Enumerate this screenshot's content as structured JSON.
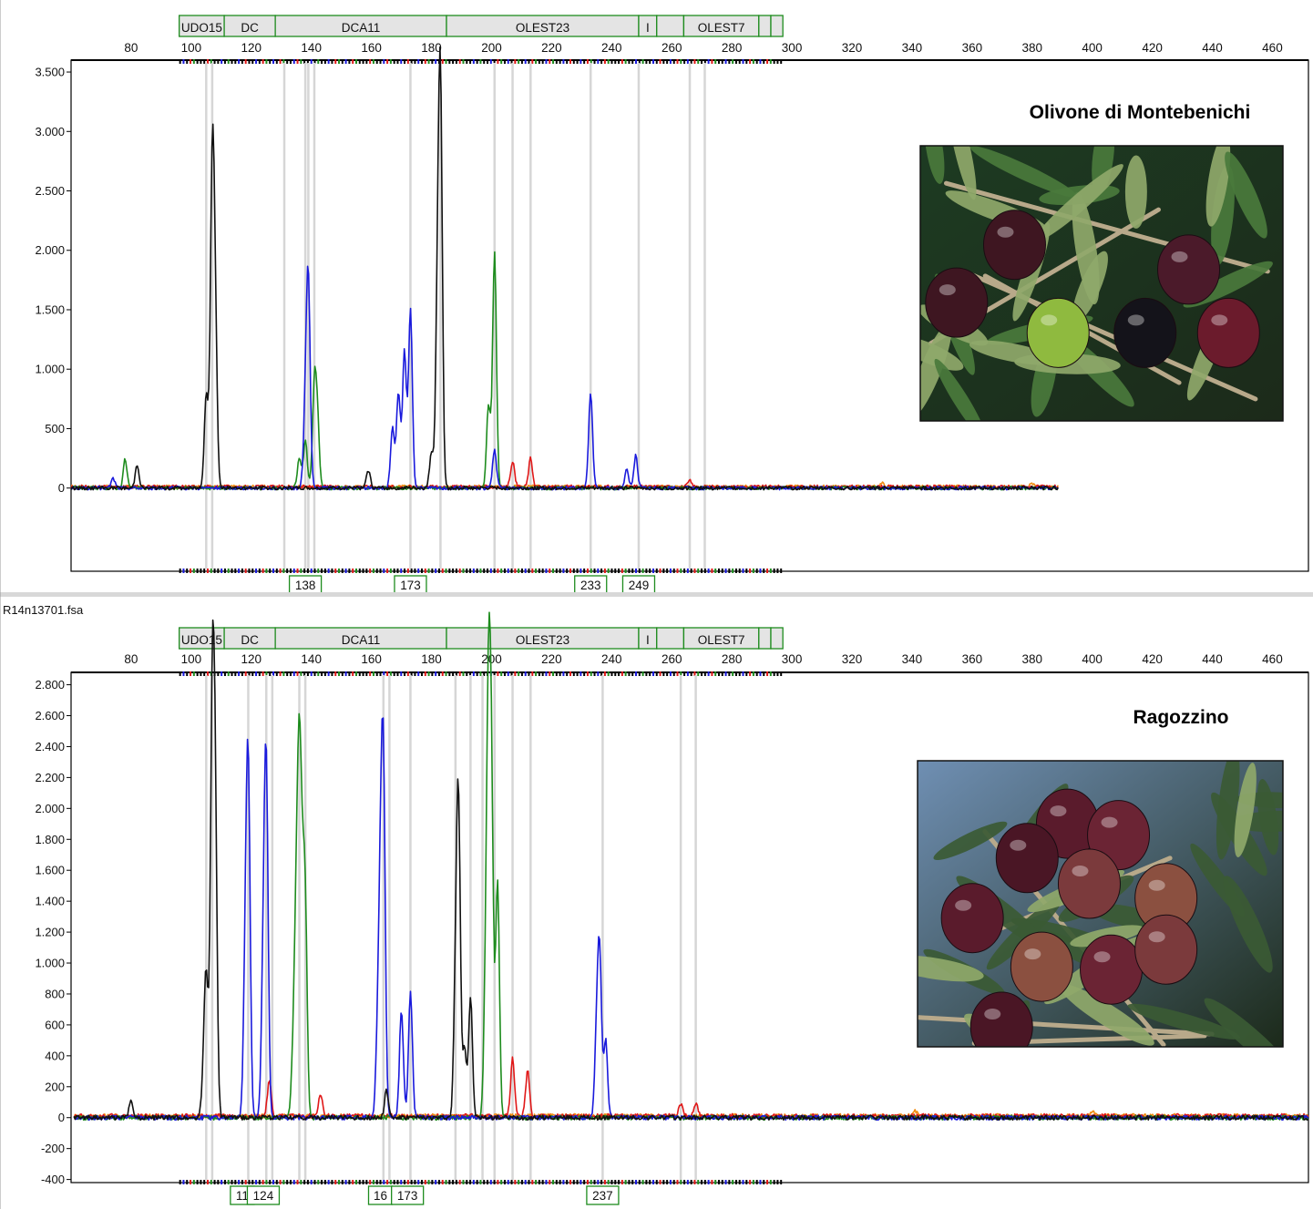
{
  "chart_data": [
    {
      "type": "line",
      "title": "Olivone di Montebenichi",
      "filename": "",
      "ylim": [
        -700,
        3600
      ],
      "yticks": [
        0,
        500,
        1000,
        1500,
        2000,
        2500,
        3000,
        3500
      ],
      "ytick_labels": [
        "0",
        "500",
        "1.000",
        "1.500",
        "2.000",
        "2.500",
        "3.000",
        "3.500"
      ],
      "xlim": [
        60,
        472
      ],
      "xticks": [
        80,
        100,
        120,
        140,
        160,
        180,
        200,
        220,
        240,
        260,
        280,
        300,
        320,
        340,
        360,
        380,
        400,
        420,
        440,
        460
      ],
      "markers": [
        {
          "label": "UDO15",
          "start": 96,
          "end": 111
        },
        {
          "label": "DC",
          "start": 111,
          "end": 128
        },
        {
          "label": "DCA11",
          "start": 128,
          "end": 185
        },
        {
          "label": "OLEST23",
          "start": 185,
          "end": 249
        },
        {
          "label": "I",
          "start": 249,
          "end": 255
        },
        {
          "label": "",
          "start": 255,
          "end": 264
        },
        {
          "label": "OLEST7",
          "start": 264,
          "end": 289
        },
        {
          "label": "",
          "start": 289,
          "end": 293
        },
        {
          "label": "",
          "start": 293,
          "end": 297
        }
      ],
      "bins": [
        105,
        107,
        131,
        138,
        139,
        141,
        173,
        183,
        201,
        207,
        213,
        233,
        249,
        266,
        271
      ],
      "alleles": [
        "138",
        "173",
        "233",
        "249"
      ],
      "allele_positions": [
        138,
        173,
        233,
        249
      ],
      "series": [
        {
          "dye": "blue",
          "color": "#1a1adc",
          "peaks": [
            [
              74,
              80
            ],
            [
              139,
              1680
            ],
            [
              138,
              600
            ],
            [
              171,
              1150
            ],
            [
              173,
              1500
            ],
            [
              169,
              800
            ],
            [
              167,
              500
            ],
            [
              201,
              330
            ],
            [
              233,
              800
            ],
            [
              248,
              270
            ],
            [
              245,
              150
            ]
          ]
        },
        {
          "dye": "green",
          "color": "#1e8c1e",
          "peaks": [
            [
              78,
              240
            ],
            [
              141,
              800
            ],
            [
              142,
              550
            ],
            [
              138,
              400
            ],
            [
              136,
              250
            ],
            [
              201,
              1980
            ],
            [
              199,
              700
            ]
          ]
        },
        {
          "dye": "black",
          "color": "#111111",
          "peaks": [
            [
              82,
              200
            ],
            [
              105,
              800
            ],
            [
              107,
              2600
            ],
            [
              108,
              1300
            ],
            [
              159,
              150
            ],
            [
              183,
              3230
            ],
            [
              182,
              1400
            ],
            [
              180,
              300
            ]
          ]
        },
        {
          "dye": "red",
          "color": "#e01818",
          "peaks": [
            [
              207,
              220
            ],
            [
              213,
              240
            ],
            [
              266,
              50
            ]
          ]
        },
        {
          "dye": "orange",
          "color": "#f08c10",
          "peaks": [
            [
              330,
              30
            ],
            [
              380,
              30
            ],
            [
              420,
              30
            ]
          ]
        }
      ]
    },
    {
      "type": "line",
      "title": "Ragozzino",
      "filename": "R14n13701.fsa",
      "ylim": [
        -420,
        2880
      ],
      "yticks": [
        -400,
        -200,
        0,
        200,
        400,
        600,
        800,
        1000,
        1200,
        1400,
        1600,
        1800,
        2000,
        2200,
        2400,
        2600,
        2800
      ],
      "ytick_labels": [
        "-400",
        "-200",
        "0",
        "200",
        "400",
        "600",
        "800",
        "1.000",
        "1.200",
        "1.400",
        "1.600",
        "1.800",
        "2.000",
        "2.200",
        "2.400",
        "2.600",
        "2.800"
      ],
      "xlim": [
        60,
        472
      ],
      "xticks": [
        80,
        100,
        120,
        140,
        160,
        180,
        200,
        220,
        240,
        260,
        280,
        300,
        320,
        340,
        360,
        380,
        400,
        420,
        440,
        460
      ],
      "markers": [
        {
          "label": "UDO15",
          "start": 96,
          "end": 111
        },
        {
          "label": "DC",
          "start": 111,
          "end": 128
        },
        {
          "label": "DCA11",
          "start": 128,
          "end": 185
        },
        {
          "label": "OLEST23",
          "start": 185,
          "end": 249
        },
        {
          "label": "I",
          "start": 249,
          "end": 255
        },
        {
          "label": "",
          "start": 255,
          "end": 264
        },
        {
          "label": "OLEST7",
          "start": 264,
          "end": 289
        },
        {
          "label": "",
          "start": 289,
          "end": 293
        },
        {
          "label": "",
          "start": 293,
          "end": 297
        }
      ],
      "bins": [
        105,
        107,
        119,
        125,
        127,
        136,
        138,
        164,
        166,
        173,
        188,
        193,
        197,
        201,
        207,
        213,
        237,
        263,
        268
      ],
      "alleles": [
        "11",
        "124",
        "16",
        "173",
        "237"
      ],
      "allele_positions": [
        117,
        124,
        163,
        172,
        237
      ],
      "series": [
        {
          "dye": "blue",
          "color": "#1a1adc",
          "peaks": [
            [
              119,
              2160
            ],
            [
              118,
              900
            ],
            [
              125,
              2140
            ],
            [
              124,
              900
            ],
            [
              164,
              2130
            ],
            [
              163,
              1300
            ],
            [
              162,
              400
            ],
            [
              170,
              700
            ],
            [
              173,
              820
            ],
            [
              236,
              1000
            ],
            [
              235,
              500
            ],
            [
              238,
              500
            ]
          ]
        },
        {
          "dye": "green",
          "color": "#1e8c1e",
          "peaks": [
            [
              136,
              1980
            ],
            [
              135,
              1100
            ],
            [
              137,
              1050
            ],
            [
              138,
              1250
            ],
            [
              134,
              400
            ],
            [
              199,
              2400
            ],
            [
              200,
              1900
            ],
            [
              202,
              1520
            ],
            [
              198,
              700
            ]
          ]
        },
        {
          "dye": "black",
          "color": "#111111",
          "peaks": [
            [
              80,
              120
            ],
            [
              105,
              900
            ],
            [
              107,
              2520
            ],
            [
              108,
              1820
            ],
            [
              104,
              200
            ],
            [
              165,
              180
            ],
            [
              189,
              1950
            ],
            [
              188,
              750
            ],
            [
              193,
              780
            ],
            [
              191,
              450
            ]
          ]
        },
        {
          "dye": "red",
          "color": "#e01818",
          "peaks": [
            [
              126,
              230
            ],
            [
              143,
              150
            ],
            [
              207,
              370
            ],
            [
              212,
              290
            ],
            [
              263,
              80
            ],
            [
              268,
              80
            ]
          ]
        },
        {
          "dye": "orange",
          "color": "#f08c10",
          "peaks": [
            [
              341,
              30
            ],
            [
              400,
              30
            ]
          ]
        }
      ]
    }
  ],
  "photos": [
    {
      "name": "olive-branch-photo-montebenichi",
      "sky": "#1d3b22",
      "leaf": "#4a7a3c",
      "olives": [
        "#3e1621",
        "#4b1a2a",
        "#14131a",
        "#8fba3f",
        "#6b1b2c"
      ]
    },
    {
      "name": "olive-branch-photo-ragozzino",
      "sky": "#6f8fb3",
      "leaf": "#3b5a34",
      "olives": [
        "#5a1b2c",
        "#6b2434",
        "#7b3a3c",
        "#4a1625",
        "#8b5040"
      ]
    }
  ]
}
